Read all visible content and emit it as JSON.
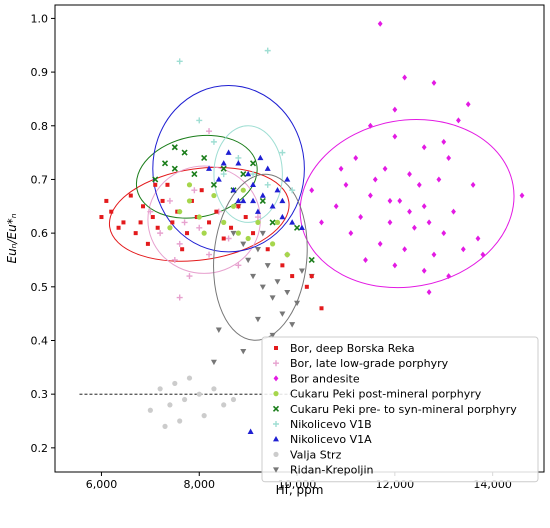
{
  "chart_data": {
    "type": "scatter",
    "xlabel": "Hf, ppm",
    "ylabel": "Euₙ/Eu*ₙ",
    "xlim": [
      5050,
      15050
    ],
    "ylim": [
      0.155,
      1.025
    ],
    "x_ticks": [
      6000,
      8000,
      10000,
      12000,
      14000
    ],
    "x_tick_labels": [
      "6,000",
      "8,000",
      "10,000",
      "12,000",
      "14,000"
    ],
    "y_ticks": [
      0.2,
      0.3,
      0.4,
      0.5,
      0.6,
      0.7,
      0.8,
      0.9,
      1.0
    ],
    "y_tick_labels": [
      "0.2",
      "0.3",
      "0.4",
      "0.5",
      "0.6",
      "0.7",
      "0.8",
      "0.9",
      "1.0"
    ],
    "grid": false,
    "legend_position": "bottom-right",
    "reference_line": {
      "y": 0.3,
      "x_start": 5550,
      "x_end": 10150
    },
    "series": [
      {
        "name": "Bor, deep Borska Reka",
        "color": "#e31a1c",
        "marker": "square",
        "points": [
          [
            6000,
            0.63
          ],
          [
            6100,
            0.66
          ],
          [
            6200,
            0.64
          ],
          [
            6350,
            0.61
          ],
          [
            6450,
            0.62
          ],
          [
            6600,
            0.67
          ],
          [
            6700,
            0.6
          ],
          [
            6850,
            0.65
          ],
          [
            6950,
            0.58
          ],
          [
            7050,
            0.63
          ],
          [
            7150,
            0.61
          ],
          [
            7250,
            0.66
          ],
          [
            7350,
            0.69
          ],
          [
            7450,
            0.62
          ],
          [
            7550,
            0.64
          ],
          [
            7650,
            0.57
          ],
          [
            7750,
            0.6
          ],
          [
            7850,
            0.66
          ],
          [
            7950,
            0.63
          ],
          [
            8050,
            0.68
          ],
          [
            8200,
            0.62
          ],
          [
            8350,
            0.64
          ],
          [
            8500,
            0.59
          ],
          [
            8650,
            0.61
          ],
          [
            8800,
            0.65
          ],
          [
            8950,
            0.63
          ],
          [
            9100,
            0.6
          ],
          [
            9400,
            0.57
          ],
          [
            9700,
            0.54
          ],
          [
            9900,
            0.52
          ],
          [
            10200,
            0.5
          ],
          [
            10500,
            0.46
          ],
          [
            10300,
            0.52
          ],
          [
            7100,
            0.69
          ],
          [
            6800,
            0.62
          ]
        ],
        "ellipse": {
          "cx": 8000,
          "cy": 0.635,
          "rx": 1850,
          "ry": 0.085,
          "rotation_deg": -8
        }
      },
      {
        "name": "Bor, late low-grade porphyry",
        "color": "#e7a2cf",
        "marker": "plus",
        "points": [
          [
            7000,
            0.64
          ],
          [
            7200,
            0.6
          ],
          [
            7400,
            0.66
          ],
          [
            7500,
            0.55
          ],
          [
            7600,
            0.58
          ],
          [
            7700,
            0.62
          ],
          [
            7800,
            0.52
          ],
          [
            7900,
            0.68
          ],
          [
            8000,
            0.61
          ],
          [
            8200,
            0.56
          ],
          [
            8400,
            0.64
          ],
          [
            8600,
            0.59
          ],
          [
            8800,
            0.54
          ],
          [
            9200,
            0.63
          ],
          [
            9800,
            0.56
          ],
          [
            7600,
            0.48
          ],
          [
            8200,
            0.79
          ]
        ],
        "ellipse": {
          "cx": 8100,
          "cy": 0.625,
          "rx": 1150,
          "ry": 0.1,
          "rotation_deg": 0
        }
      },
      {
        "name": "Bor andesite",
        "color": "#e31ae3",
        "marker": "diamond",
        "points": [
          [
            11700,
            0.99
          ],
          [
            12200,
            0.89
          ],
          [
            12800,
            0.88
          ],
          [
            13500,
            0.84
          ],
          [
            13300,
            0.81
          ],
          [
            11500,
            0.8
          ],
          [
            12000,
            0.78
          ],
          [
            12600,
            0.76
          ],
          [
            13100,
            0.74
          ],
          [
            11200,
            0.74
          ],
          [
            11800,
            0.72
          ],
          [
            12300,
            0.71
          ],
          [
            12900,
            0.7
          ],
          [
            13600,
            0.69
          ],
          [
            11000,
            0.69
          ],
          [
            11500,
            0.67
          ],
          [
            12100,
            0.66
          ],
          [
            12600,
            0.65
          ],
          [
            13200,
            0.64
          ],
          [
            10800,
            0.65
          ],
          [
            11300,
            0.63
          ],
          [
            11900,
            0.62
          ],
          [
            12400,
            0.61
          ],
          [
            13000,
            0.6
          ],
          [
            13700,
            0.59
          ],
          [
            10500,
            0.62
          ],
          [
            11100,
            0.6
          ],
          [
            11700,
            0.58
          ],
          [
            12200,
            0.57
          ],
          [
            12800,
            0.56
          ],
          [
            13400,
            0.57
          ],
          [
            11400,
            0.55
          ],
          [
            12000,
            0.54
          ],
          [
            12600,
            0.53
          ],
          [
            13100,
            0.52
          ],
          [
            12700,
            0.49
          ],
          [
            14600,
            0.67
          ],
          [
            10300,
            0.68
          ],
          [
            12500,
            0.69
          ],
          [
            11900,
            0.66
          ],
          [
            12000,
            0.83
          ],
          [
            12700,
            0.62
          ],
          [
            11600,
            0.7
          ],
          [
            13800,
            0.56
          ],
          [
            12300,
            0.64
          ],
          [
            10900,
            0.72
          ],
          [
            13000,
            0.77
          ]
        ],
        "ellipse": {
          "cx": 12250,
          "cy": 0.655,
          "rx": 2200,
          "ry": 0.155,
          "rotation_deg": -10
        }
      },
      {
        "name": "Cukaru Peki post-mineral porphyry",
        "color": "#a6d64c",
        "marker": "circle",
        "points": [
          [
            7400,
            0.61
          ],
          [
            7600,
            0.64
          ],
          [
            7800,
            0.66
          ],
          [
            8000,
            0.63
          ],
          [
            8100,
            0.6
          ],
          [
            8300,
            0.67
          ],
          [
            8500,
            0.62
          ],
          [
            8700,
            0.65
          ],
          [
            8800,
            0.6
          ],
          [
            9000,
            0.59
          ],
          [
            9200,
            0.62
          ],
          [
            9500,
            0.58
          ],
          [
            9800,
            0.56
          ],
          [
            8900,
            0.68
          ],
          [
            7800,
            0.69
          ],
          [
            9600,
            0.62
          ]
        ],
        "ellipse": null
      },
      {
        "name": "Cukaru Peki pre- to syn-mineral porphyry",
        "color": "#1a7d1a",
        "marker": "x",
        "points": [
          [
            7100,
            0.7
          ],
          [
            7300,
            0.73
          ],
          [
            7500,
            0.72
          ],
          [
            7700,
            0.75
          ],
          [
            7900,
            0.71
          ],
          [
            8100,
            0.74
          ],
          [
            8300,
            0.69
          ],
          [
            8500,
            0.72
          ],
          [
            8700,
            0.68
          ],
          [
            8900,
            0.71
          ],
          [
            9100,
            0.73
          ],
          [
            9300,
            0.66
          ],
          [
            9500,
            0.62
          ],
          [
            10000,
            0.61
          ],
          [
            10300,
            0.55
          ],
          [
            7500,
            0.76
          ]
        ],
        "ellipse": {
          "cx": 7950,
          "cy": 0.705,
          "rx": 1250,
          "ry": 0.075,
          "rotation_deg": -12
        }
      },
      {
        "name": "Nikolicevo V1B",
        "color": "#9fded3",
        "marker": "plus",
        "points": [
          [
            7600,
            0.92
          ],
          [
            9400,
            0.94
          ],
          [
            8000,
            0.81
          ],
          [
            8300,
            0.77
          ],
          [
            8800,
            0.74
          ],
          [
            9100,
            0.71
          ],
          [
            9400,
            0.69
          ],
          [
            9700,
            0.75
          ],
          [
            8500,
            0.71
          ],
          [
            9900,
            0.68
          ]
        ],
        "ellipse": {
          "cx": 9000,
          "cy": 0.71,
          "rx": 700,
          "ry": 0.09,
          "rotation_deg": 0
        }
      },
      {
        "name": "Nikolicevo V1A",
        "color": "#1f1fd2",
        "marker": "triangle-up",
        "points": [
          [
            8200,
            0.72
          ],
          [
            8400,
            0.7
          ],
          [
            8600,
            0.75
          ],
          [
            8700,
            0.68
          ],
          [
            8800,
            0.73
          ],
          [
            8900,
            0.66
          ],
          [
            9000,
            0.71
          ],
          [
            9100,
            0.69
          ],
          [
            9200,
            0.64
          ],
          [
            9300,
            0.67
          ],
          [
            9400,
            0.72
          ],
          [
            9500,
            0.65
          ],
          [
            9600,
            0.68
          ],
          [
            9700,
            0.63
          ],
          [
            9800,
            0.7
          ],
          [
            9900,
            0.62
          ],
          [
            10100,
            0.61
          ],
          [
            9050,
            0.23
          ],
          [
            8800,
            0.66
          ],
          [
            9250,
            0.74
          ],
          [
            8500,
            0.73
          ],
          [
            9700,
            0.66
          ],
          [
            9100,
            0.66
          ]
        ],
        "ellipse": {
          "cx": 8600,
          "cy": 0.72,
          "rx": 1550,
          "ry": 0.155,
          "rotation_deg": 0
        }
      },
      {
        "name": "Valja Strz",
        "color": "#cccccc",
        "marker": "circle",
        "points": [
          [
            7000,
            0.27
          ],
          [
            7200,
            0.31
          ],
          [
            7400,
            0.28
          ],
          [
            7500,
            0.32
          ],
          [
            7600,
            0.25
          ],
          [
            7700,
            0.29
          ],
          [
            7800,
            0.33
          ],
          [
            8000,
            0.3
          ],
          [
            8100,
            0.26
          ],
          [
            8300,
            0.31
          ],
          [
            8500,
            0.28
          ],
          [
            8700,
            0.29
          ],
          [
            7300,
            0.24
          ]
        ],
        "ellipse": null
      },
      {
        "name": "Ridan-Krepoljin",
        "color": "#777777",
        "marker": "triangle-down",
        "points": [
          [
            8700,
            0.6
          ],
          [
            8900,
            0.58
          ],
          [
            9000,
            0.55
          ],
          [
            9100,
            0.52
          ],
          [
            9200,
            0.57
          ],
          [
            9300,
            0.5
          ],
          [
            9400,
            0.54
          ],
          [
            9500,
            0.48
          ],
          [
            9600,
            0.51
          ],
          [
            9700,
            0.45
          ],
          [
            9800,
            0.49
          ],
          [
            9900,
            0.43
          ],
          [
            10000,
            0.47
          ],
          [
            10100,
            0.53
          ],
          [
            9300,
            0.6
          ],
          [
            8800,
            0.65
          ],
          [
            8400,
            0.42
          ],
          [
            8900,
            0.38
          ],
          [
            9200,
            0.44
          ],
          [
            9500,
            0.41
          ],
          [
            10300,
            0.52
          ],
          [
            8300,
            0.36
          ]
        ],
        "ellipse": {
          "cx": 9250,
          "cy": 0.555,
          "rx": 950,
          "ry": 0.155,
          "rotation_deg": 5
        }
      }
    ]
  }
}
